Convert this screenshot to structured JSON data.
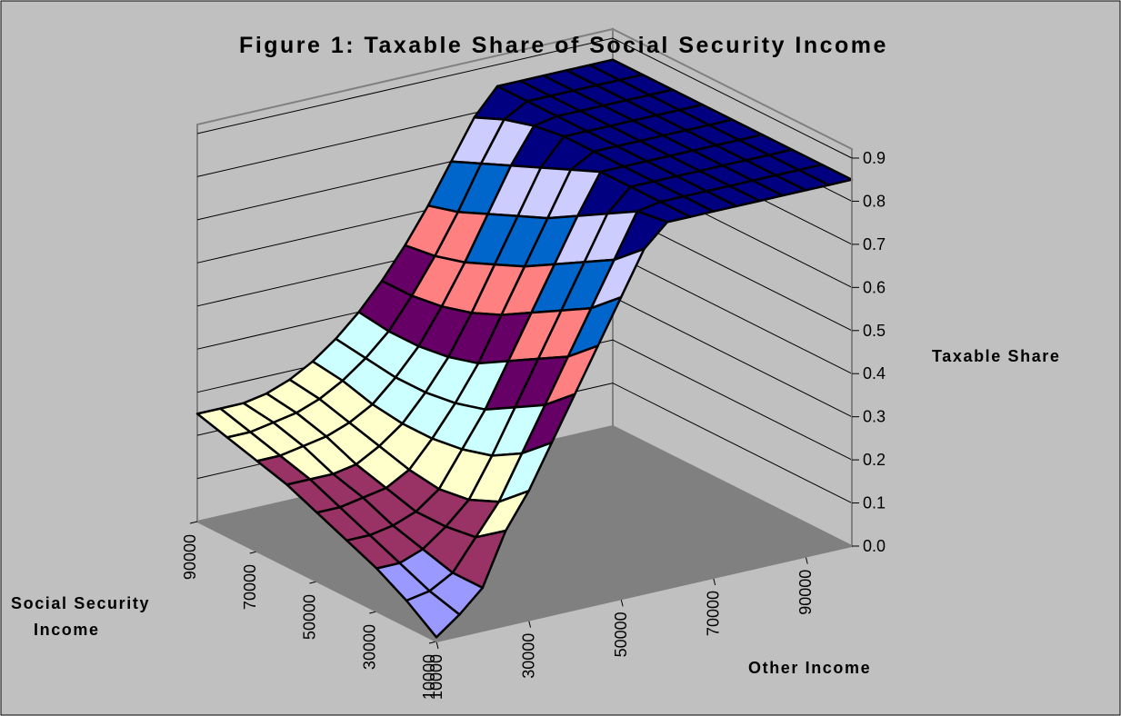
{
  "chart_data": {
    "type": "surface",
    "title": "Figure 1: Taxable Share of Social Security Income",
    "zlabel": "Taxable Share",
    "xlabel": "Other Income",
    "ylabel_lines": [
      "Social Security",
      "Income"
    ],
    "zlim": [
      0,
      0.9
    ],
    "z_ticks": [
      "0.0",
      "0.1",
      "0.2",
      "0.3",
      "0.4",
      "0.5",
      "0.6",
      "0.7",
      "0.8",
      "0.9"
    ],
    "other_income_ticks": [
      "10000",
      "30000",
      "50000",
      "70000",
      "90000"
    ],
    "social_security_ticks": [
      "10000",
      "30000",
      "50000",
      "70000",
      "90000"
    ],
    "grid_lines": true,
    "colors": {
      "background": "#c0c0c0",
      "walls": "#c0c0c0",
      "floor": "#808080",
      "wall_edges": "#808080",
      "mesh": "#000000",
      "bands": [
        "#9999ff",
        "#993366",
        "#ffffcc",
        "#ccffff",
        "#660066",
        "#ff8080",
        "#0066cc",
        "#ccccff",
        "#000080"
      ]
    },
    "other_income": [
      10000,
      15000,
      20000,
      25000,
      30000,
      35000,
      40000,
      45000,
      50000,
      55000,
      60000,
      65000,
      70000,
      75000,
      80000,
      85000,
      90000,
      95000,
      100000
    ],
    "social_security_income": [
      10000,
      20000,
      30000,
      40000,
      50000,
      60000,
      70000,
      80000,
      90000
    ],
    "taxable_share": [
      [
        0.01,
        0.05,
        0.1,
        0.22,
        0.3,
        0.4,
        0.5,
        0.6,
        0.7,
        0.8,
        0.85,
        0.85,
        0.85,
        0.85,
        0.85,
        0.85,
        0.85,
        0.85,
        0.85
      ],
      [
        0.06,
        0.07,
        0.1,
        0.17,
        0.24,
        0.34,
        0.44,
        0.54,
        0.64,
        0.74,
        0.84,
        0.85,
        0.85,
        0.85,
        0.85,
        0.85,
        0.85,
        0.85,
        0.85
      ],
      [
        0.1,
        0.1,
        0.12,
        0.16,
        0.21,
        0.3,
        0.4,
        0.5,
        0.6,
        0.7,
        0.8,
        0.85,
        0.85,
        0.85,
        0.85,
        0.85,
        0.85,
        0.85,
        0.85
      ],
      [
        0.13,
        0.13,
        0.14,
        0.16,
        0.2,
        0.28,
        0.36,
        0.46,
        0.56,
        0.66,
        0.76,
        0.85,
        0.85,
        0.85,
        0.85,
        0.85,
        0.85,
        0.85,
        0.85
      ],
      [
        0.16,
        0.16,
        0.17,
        0.18,
        0.21,
        0.27,
        0.34,
        0.42,
        0.52,
        0.62,
        0.72,
        0.82,
        0.85,
        0.85,
        0.85,
        0.85,
        0.85,
        0.85,
        0.85
      ],
      [
        0.19,
        0.19,
        0.19,
        0.2,
        0.23,
        0.27,
        0.33,
        0.4,
        0.49,
        0.59,
        0.69,
        0.79,
        0.85,
        0.85,
        0.85,
        0.85,
        0.85,
        0.85,
        0.85
      ],
      [
        0.21,
        0.21,
        0.22,
        0.23,
        0.25,
        0.28,
        0.33,
        0.39,
        0.47,
        0.56,
        0.66,
        0.76,
        0.84,
        0.85,
        0.85,
        0.85,
        0.85,
        0.85,
        0.85
      ],
      [
        0.23,
        0.23,
        0.24,
        0.25,
        0.27,
        0.3,
        0.34,
        0.39,
        0.46,
        0.54,
        0.63,
        0.73,
        0.82,
        0.85,
        0.85,
        0.85,
        0.85,
        0.85,
        0.85
      ],
      [
        0.25,
        0.25,
        0.25,
        0.26,
        0.28,
        0.31,
        0.35,
        0.4,
        0.46,
        0.53,
        0.61,
        0.7,
        0.79,
        0.85,
        0.85,
        0.85,
        0.85,
        0.85,
        0.85
      ]
    ]
  }
}
